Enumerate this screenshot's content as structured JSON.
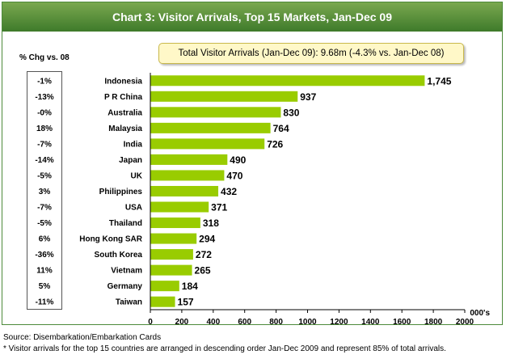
{
  "title": "Chart 3: Visitor Arrivals, Top 15 Markets, Jan-Dec 09",
  "total_box": "Total Visitor Arrivals (Jan-Dec 09): 9.68m (-4.3% vs. Jan-Dec 08)",
  "chg_header": "% Chg vs. 08",
  "colors": {
    "bar": "#99cc00",
    "title_bg": "#4f8a35"
  },
  "chart_data": {
    "type": "bar",
    "orientation": "horizontal",
    "categories": [
      "Indonesia",
      "P R China",
      "Australia",
      "Malaysia",
      "India",
      "Japan",
      "UK",
      "Philippines",
      "USA",
      "Thailand",
      "Hong Kong SAR",
      "South Korea",
      "Vietnam",
      "Germany",
      "Taiwan"
    ],
    "values": [
      1745,
      937,
      830,
      764,
      726,
      490,
      470,
      432,
      371,
      318,
      294,
      272,
      265,
      184,
      157
    ],
    "value_labels": [
      "1,745",
      "937",
      "830",
      "764",
      "726",
      "490",
      "470",
      "432",
      "371",
      "318",
      "294",
      "272",
      "265",
      "184",
      "157"
    ],
    "pct_change": [
      "-1%",
      "-13%",
      "-0%",
      "18%",
      "-7%",
      "-14%",
      "-5%",
      "3%",
      "-7%",
      "-5%",
      "6%",
      "-36%",
      "11%",
      "5%",
      "-11%"
    ],
    "xlim": [
      0,
      2000
    ],
    "xticks": [
      "0",
      "200",
      "400",
      "600",
      "800",
      "1000",
      "1200",
      "1400",
      "1600",
      "1800",
      "2000"
    ],
    "xlabel": "000's",
    "grid": false
  },
  "footnotes": {
    "source": "Source: Disembarkation/Embarkation Cards",
    "note": "* Visitor arrivals for the top 15 countries are arranged in descending order Jan-Dec 2009 and represent 85% of total arrivals."
  }
}
